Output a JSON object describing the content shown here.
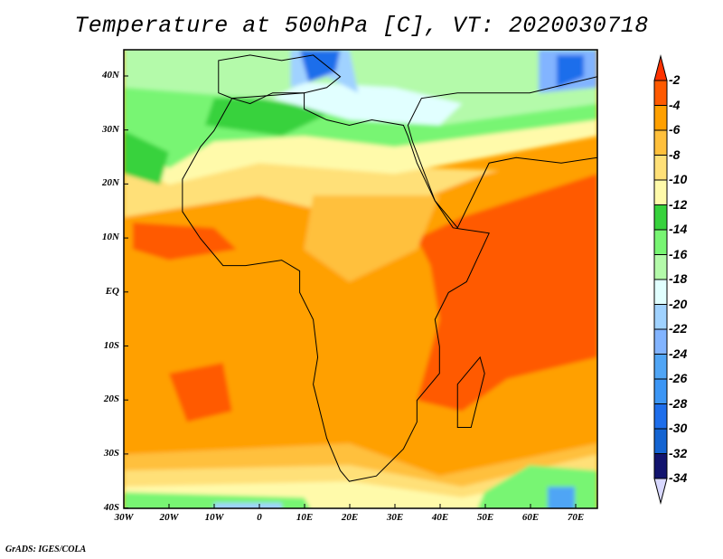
{
  "title": "Temperature at 500hPa [C], VT: 2020030718",
  "x_axis_labels": [
    "30W",
    "20W",
    "10W",
    "0",
    "10E",
    "20E",
    "30E",
    "40E",
    "50E",
    "60E",
    "70E"
  ],
  "y_axis_labels": [
    "40N",
    "30N",
    "20N",
    "10N",
    "EQ",
    "10S",
    "20S",
    "30S",
    "40S"
  ],
  "colorbar": {
    "labels": [
      "-2",
      "-4",
      "-6",
      "-8",
      "-10",
      "-12",
      "-14",
      "-16",
      "-18",
      "-20",
      "-22",
      "-24",
      "-26",
      "-28",
      "-30",
      "-32",
      "-34"
    ],
    "top_triangle_color": "#ff3200",
    "bottom_triangle_color": "#d8d8ff",
    "box_colors": [
      "#ff5a00",
      "#ffa000",
      "#ffc03c",
      "#ffe078",
      "#fffaaa",
      "#37d23c",
      "#78f573",
      "#b4faaa",
      "#e1ffff",
      "#a0d2ff",
      "#82b4ff",
      "#50a5f5",
      "#3c96f5",
      "#1e6eeb",
      "#1464d2",
      "#12146e"
    ]
  },
  "credit": "GrADS: IGES/COLA"
}
